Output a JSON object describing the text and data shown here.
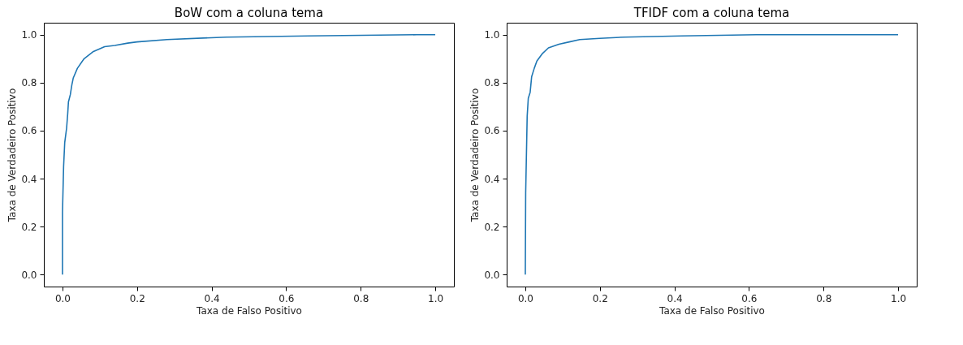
{
  "chart_data": [
    {
      "type": "line",
      "title": "BoW com a coluna tema",
      "xlabel": "Taxa de Falso Positivo",
      "ylabel": "Taxa de Verdadeiro Positivo",
      "grid": false,
      "xlim": [
        -0.05,
        1.05
      ],
      "ylim": [
        -0.05,
        1.05
      ],
      "xticks": [
        {
          "value": 0,
          "label": "0.0"
        },
        {
          "value": 0.2,
          "label": "0.2"
        },
        {
          "value": 0.4,
          "label": "0.4"
        },
        {
          "value": 0.6,
          "label": "0.6"
        },
        {
          "value": 0.8,
          "label": "0.8"
        },
        {
          "value": 1,
          "label": "1.0"
        }
      ],
      "yticks": [
        {
          "value": 0,
          "label": "0.0"
        },
        {
          "value": 0.2,
          "label": "0.2"
        },
        {
          "value": 0.4,
          "label": "0.4"
        },
        {
          "value": 0.6,
          "label": "0.6"
        },
        {
          "value": 0.8,
          "label": "0.8"
        },
        {
          "value": 1,
          "label": "1.0"
        }
      ],
      "series": [
        {
          "color": "#1f77b4",
          "x": [
            0,
            0,
            0.003,
            0.006,
            0.011,
            0.014,
            0.016,
            0.021,
            0.025,
            0.029,
            0.04,
            0.058,
            0.083,
            0.113,
            0.14,
            0.175,
            0.2,
            0.28,
            0.44,
            0.66,
            0.95,
            1.0
          ],
          "values": [
            0,
            0.26,
            0.45,
            0.55,
            0.61,
            0.67,
            0.72,
            0.75,
            0.79,
            0.82,
            0.86,
            0.9,
            0.93,
            0.95,
            0.955,
            0.965,
            0.97,
            0.98,
            0.99,
            0.995,
            1.0,
            1.0
          ]
        }
      ]
    },
    {
      "type": "line",
      "title": "TFIDF com a coluna tema",
      "xlabel": "Taxa de Falso Positivo",
      "ylabel": "Taxa de Verdadeiro Positivo",
      "grid": false,
      "xlim": [
        -0.05,
        1.05
      ],
      "ylim": [
        -0.05,
        1.05
      ],
      "xticks": [
        {
          "value": 0,
          "label": "0.0"
        },
        {
          "value": 0.2,
          "label": "0.2"
        },
        {
          "value": 0.4,
          "label": "0.4"
        },
        {
          "value": 0.6,
          "label": "0.6"
        },
        {
          "value": 0.8,
          "label": "0.8"
        },
        {
          "value": 1,
          "label": "1.0"
        }
      ],
      "yticks": [
        {
          "value": 0,
          "label": "0.0"
        },
        {
          "value": 0.2,
          "label": "0.2"
        },
        {
          "value": 0.4,
          "label": "0.4"
        },
        {
          "value": 0.6,
          "label": "0.6"
        },
        {
          "value": 0.8,
          "label": "0.8"
        },
        {
          "value": 1,
          "label": "1.0"
        }
      ],
      "series": [
        {
          "color": "#1f77b4",
          "x": [
            0,
            0.001,
            0.005,
            0.008,
            0.013,
            0.017,
            0.024,
            0.031,
            0.045,
            0.062,
            0.09,
            0.118,
            0.146,
            0.2,
            0.265,
            0.42,
            0.62,
            1.0
          ],
          "values": [
            0,
            0.34,
            0.66,
            0.735,
            0.76,
            0.825,
            0.86,
            0.89,
            0.92,
            0.945,
            0.96,
            0.97,
            0.98,
            0.985,
            0.99,
            0.995,
            1.0,
            1.0
          ]
        }
      ]
    }
  ]
}
